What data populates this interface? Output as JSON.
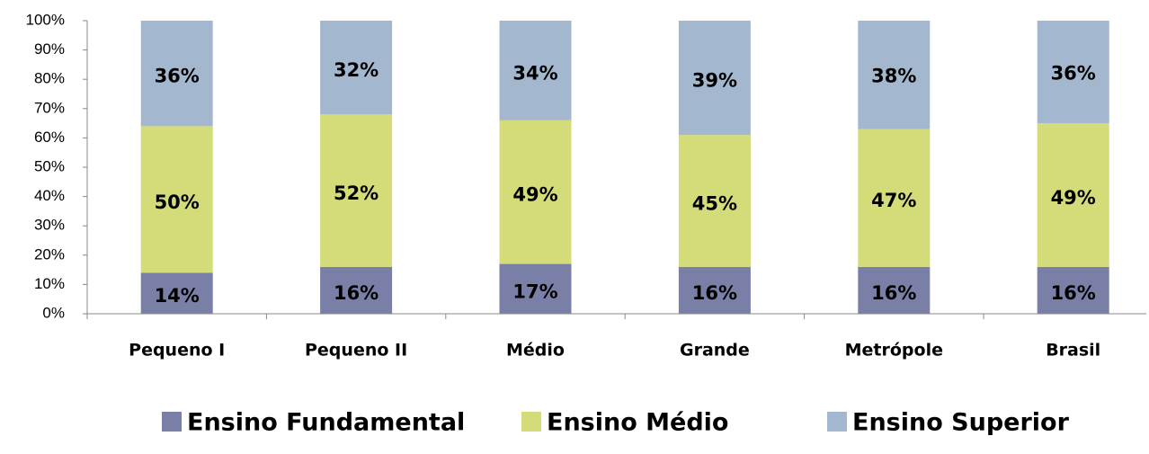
{
  "chart_data": {
    "type": "stacked_bar",
    "categories": [
      "Pequeno I",
      "Pequeno II",
      "Médio",
      "Grande",
      "Metrópole",
      "Brasil"
    ],
    "series": [
      {
        "name": "Ensino Fundamental",
        "color": "#7a7fa8",
        "values": [
          14,
          16,
          17,
          16,
          16,
          16
        ],
        "value_labels": [
          "14%",
          "16%",
          "17%",
          "16%",
          "16%",
          "16%"
        ]
      },
      {
        "name": "Ensino Médio",
        "color": "#d4dc7a",
        "values": [
          50,
          52,
          49,
          45,
          47,
          49
        ],
        "value_labels": [
          "50%",
          "52%",
          "49%",
          "45%",
          "47%",
          "49%"
        ]
      },
      {
        "name": "Ensino Superior",
        "color": "#a3b8cf",
        "values": [
          36,
          32,
          34,
          39,
          38,
          36
        ],
        "value_labels": [
          "36%",
          "32%",
          "34%",
          "39%",
          "38%",
          "36%"
        ]
      }
    ],
    "ylim": [
      0,
      100
    ],
    "yticks": [
      {
        "value": 0,
        "label": "0%"
      },
      {
        "value": 10,
        "label": "10%"
      },
      {
        "value": 20,
        "label": "20%"
      },
      {
        "value": 30,
        "label": "30%"
      },
      {
        "value": 40,
        "label": "40%"
      },
      {
        "value": 50,
        "label": "50%"
      },
      {
        "value": 60,
        "label": "60%"
      },
      {
        "value": 70,
        "label": "70%"
      },
      {
        "value": 80,
        "label": "80%"
      },
      {
        "value": 90,
        "label": "90%"
      },
      {
        "value": 100,
        "label": "100%"
      }
    ],
    "legend": "bottom"
  }
}
